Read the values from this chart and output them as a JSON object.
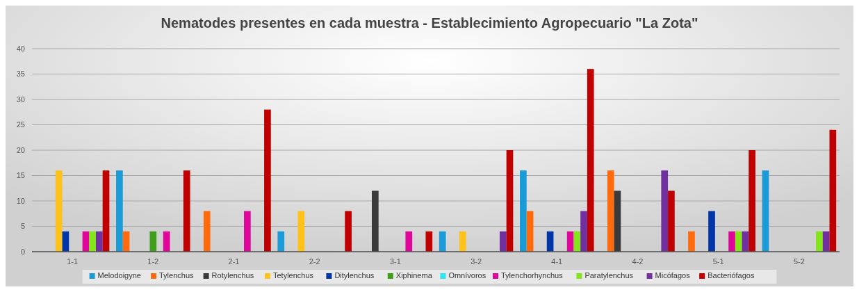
{
  "chart_data": {
    "type": "bar",
    "title": "Nematodes presentes en cada muestra - Establecimiento Agropecuario \"La Zota\"",
    "categories": [
      "1-1",
      "1-2",
      "2-1",
      "2-2",
      "3-1",
      "3-2",
      "4-1",
      "4-2",
      "5-1",
      "5-2"
    ],
    "series": [
      {
        "name": "Melodoigyne",
        "color": "#1a9bd7",
        "values": [
          0,
          16,
          0,
          4,
          0,
          4,
          16,
          0,
          0,
          16
        ]
      },
      {
        "name": "Tylenchus",
        "color": "#ff6a0d",
        "values": [
          0,
          4,
          8,
          0,
          0,
          0,
          8,
          16,
          4,
          0
        ]
      },
      {
        "name": "Rotylenchus",
        "color": "#3a3a3a",
        "values": [
          0,
          0,
          0,
          0,
          12,
          0,
          0,
          12,
          0,
          0
        ]
      },
      {
        "name": "Tetylenchus",
        "color": "#ffc21a",
        "values": [
          16,
          0,
          0,
          8,
          0,
          4,
          0,
          0,
          0,
          0
        ]
      },
      {
        "name": "Ditylenchus",
        "color": "#0036a8",
        "values": [
          4,
          0,
          0,
          0,
          0,
          0,
          4,
          0,
          8,
          0
        ]
      },
      {
        "name": "Xiphinema",
        "color": "#3e9e1a",
        "values": [
          0,
          4,
          0,
          0,
          0,
          0,
          0,
          0,
          0,
          0
        ]
      },
      {
        "name": "Omnívoros",
        "color": "#2ee6f0",
        "values": [
          0,
          0,
          0,
          0,
          0,
          0,
          0,
          0,
          0,
          0
        ]
      },
      {
        "name": "Tylenchorhynchus",
        "color": "#e0069a",
        "values": [
          4,
          4,
          8,
          0,
          4,
          0,
          4,
          0,
          4,
          0
        ]
      },
      {
        "name": "Paratylenchus",
        "color": "#84e61a",
        "values": [
          4,
          0,
          0,
          0,
          0,
          0,
          4,
          0,
          4,
          4
        ]
      },
      {
        "name": "Micófagos",
        "color": "#7030a0",
        "values": [
          4,
          0,
          0,
          0,
          0,
          4,
          8,
          16,
          4,
          4
        ]
      },
      {
        "name": "Bacteriófagos",
        "color": "#c00000",
        "values": [
          16,
          16,
          28,
          8,
          4,
          20,
          36,
          12,
          20,
          24
        ]
      }
    ],
    "ylim": [
      0,
      40
    ],
    "yticks": [
      0,
      5,
      10,
      15,
      20,
      25,
      30,
      35,
      40
    ],
    "grid": "y",
    "legend": "bottom"
  }
}
